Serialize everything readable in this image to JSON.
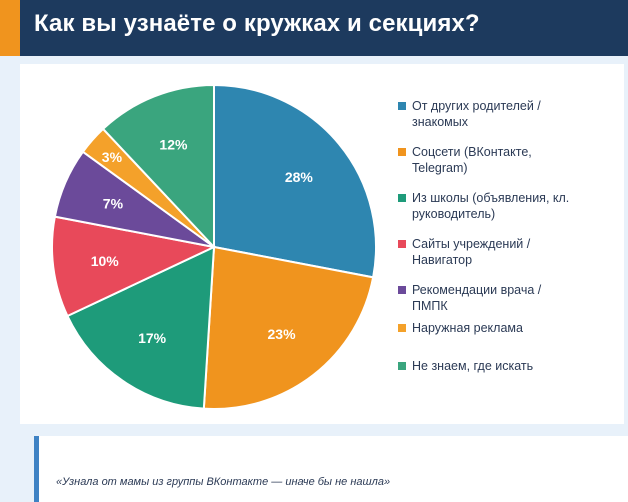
{
  "header": {
    "title": "Как вы узнаёте о кружках и секциях?"
  },
  "colors": {
    "header_bg": "#1d3a5e",
    "accent": "#f0941e",
    "page_bg": "#e8f1fa",
    "quote_bar": "#3e82c4"
  },
  "chart_data": {
    "type": "pie",
    "title": "Как вы узнаёте о кружках и секциях?",
    "categories": [
      "От других родителей / знакомых",
      "Соцсети (ВКонтакте, Telegram)",
      "Из школы (объявления, кл. руководитель)",
      "Сайты учреждений / Навигатор",
      "Рекомендации врача / ПМПК",
      "Наружная реклама",
      "Не знаем, где искать"
    ],
    "values": [
      28,
      23,
      17,
      10,
      7,
      3,
      12
    ],
    "labels": [
      "28%",
      "23%",
      "17%",
      "10%",
      "7%",
      "3%",
      "12%"
    ],
    "colors": [
      "#2e86b0",
      "#f0941e",
      "#1e9b7a",
      "#e8495a",
      "#6b4a9a",
      "#f4a12a",
      "#3aa57e"
    ],
    "legend_position": "right"
  },
  "quote": {
    "text": "«Узнала от мамы из группы ВКонтакте — иначе бы не нашла»"
  }
}
